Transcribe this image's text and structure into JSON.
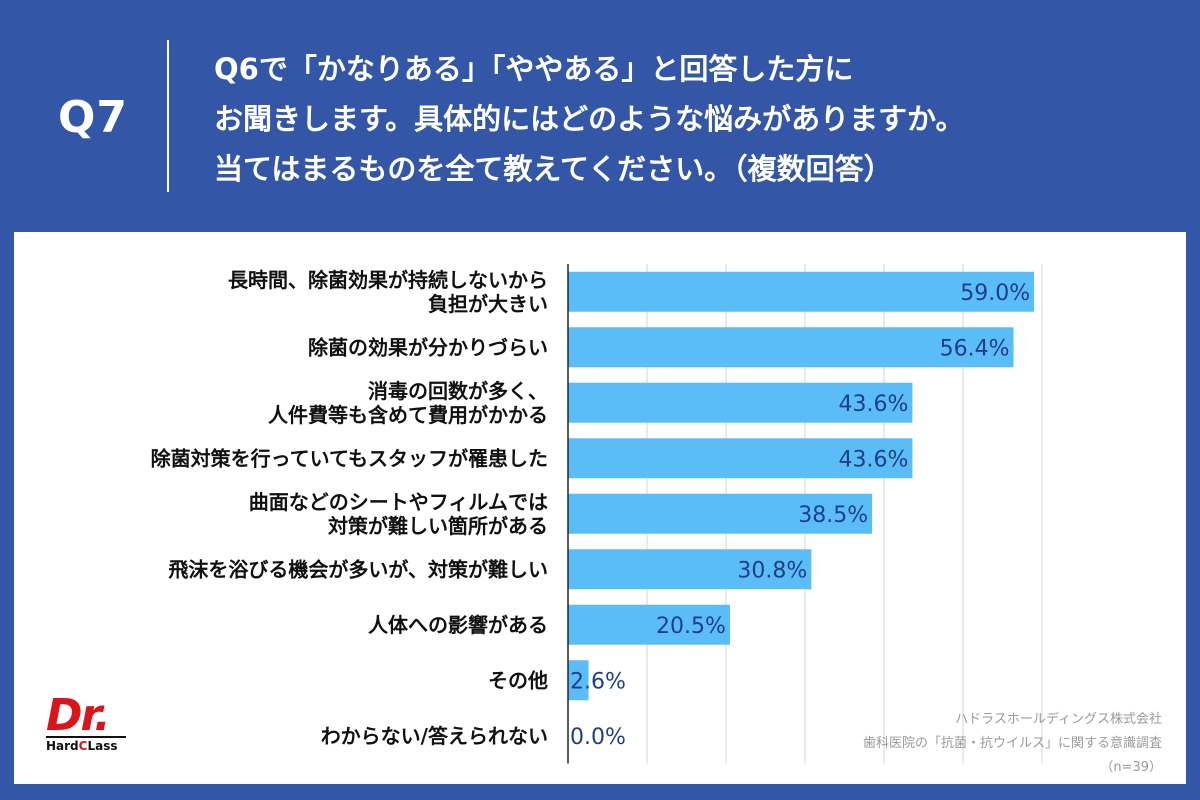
{
  "header": {
    "qnum": "Q7",
    "question_lines": [
      "Q6で「かなりある」「ややある」と回答した方に",
      "お聞きします。具体的にはどのような悩みがありますか。",
      "当てはまるものを全て教えてください。（複数回答）"
    ]
  },
  "chart_data": {
    "type": "bar",
    "orientation": "horizontal",
    "categories": [
      [
        "長時間、除菌効果が持続しないから",
        "負担が大きい"
      ],
      [
        "除菌の効果が分かりづらい"
      ],
      [
        "消毒の回数が多く、",
        "人件費等も含めて費用がかかる"
      ],
      [
        "除菌対策を行っていてもスタッフが罹患した"
      ],
      [
        "曲面などのシートやフィルムでは",
        "対策が難しい箇所がある"
      ],
      [
        "飛沫を浴びる機会が多いが、対策が難しい"
      ],
      [
        "人体への影響がある"
      ],
      [
        "その他"
      ],
      [
        "わからない/答えられない"
      ]
    ],
    "values": [
      59.0,
      56.4,
      43.6,
      43.6,
      38.5,
      30.8,
      20.5,
      2.6,
      0.0
    ],
    "value_labels": [
      "59.0%",
      "56.4%",
      "43.6%",
      "43.6%",
      "38.5%",
      "30.8%",
      "20.5%",
      "2.6%",
      "0.0%"
    ],
    "xlim": [
      0,
      60
    ],
    "grid": true,
    "bar_color": "#5bbdf7",
    "value_color": "#1e3f86"
  },
  "logo": {
    "main": "Dr.",
    "sub_pre": "Hard",
    "sub_c": "C",
    "sub_post": "Lass"
  },
  "source": {
    "company": "ハドラスホールディングス株式会社",
    "survey": "歯科医院の「抗菌・抗ウイルス」に関する意識調査",
    "n": "（n=39）"
  },
  "colors": {
    "background": "#3356a6",
    "panel": "#ffffff",
    "logo_red": "#d9151b"
  }
}
